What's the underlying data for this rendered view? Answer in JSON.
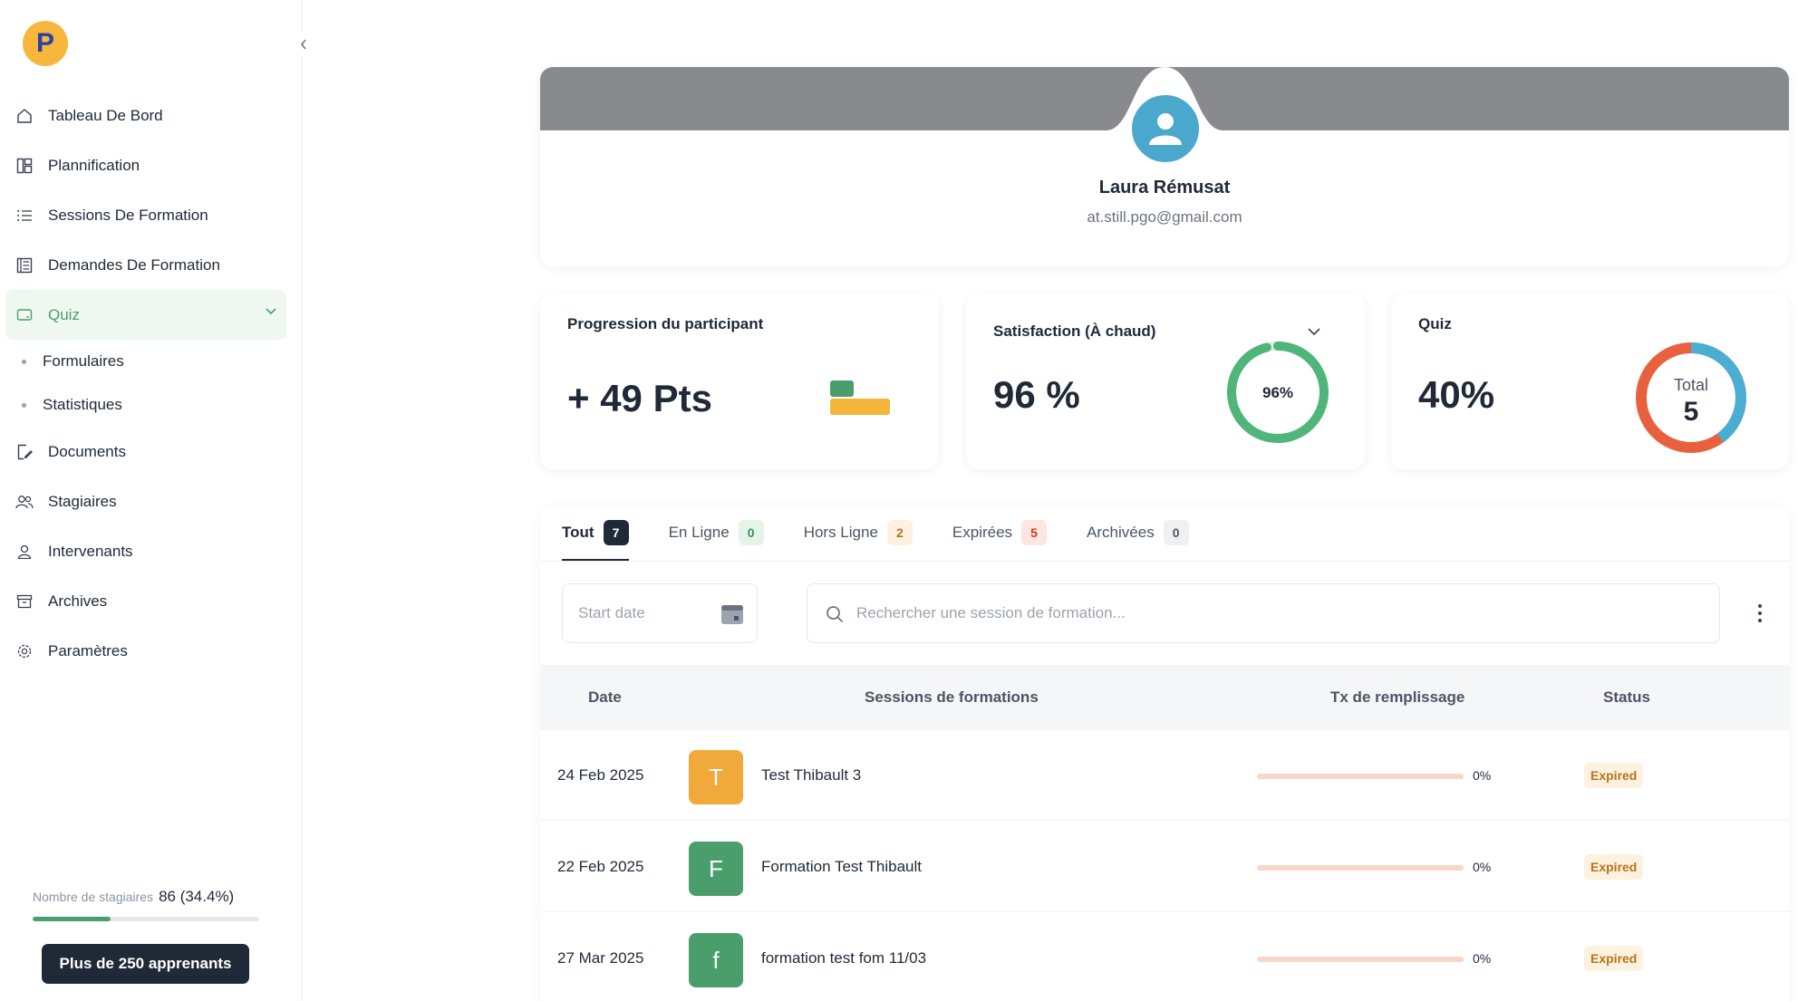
{
  "sidebar": {
    "logo_letter": "P",
    "items": [
      {
        "label": "Tableau De Bord",
        "icon": "home-icon"
      },
      {
        "label": "Plannification",
        "icon": "layout-icon"
      },
      {
        "label": "Sessions De Formation",
        "icon": "list-icon"
      },
      {
        "label": "Demandes De Formation",
        "icon": "document-list-icon"
      },
      {
        "label": "Quiz",
        "icon": "quiz-icon"
      },
      {
        "label": "Documents",
        "icon": "file-edit-icon"
      },
      {
        "label": "Stagiaires",
        "icon": "users-icon"
      },
      {
        "label": "Intervenants",
        "icon": "user-icon"
      },
      {
        "label": "Archives",
        "icon": "archive-icon"
      },
      {
        "label": "Paramètres",
        "icon": "gear-icon"
      }
    ],
    "quiz_sub": [
      {
        "label": "Formulaires"
      },
      {
        "label": "Statistiques"
      }
    ],
    "quota": {
      "label": "Nombre de stagiaires",
      "value": "86 (34.4%)",
      "fraction": 0.344
    },
    "upgrade_label": "Plus de 250 apprenants"
  },
  "profile": {
    "name": "Laura Rémusat",
    "email": "at.still.pgo@gmail.com"
  },
  "stats": {
    "progression": {
      "title": "Progression du participant",
      "value": "+ 49 Pts"
    },
    "satisfaction": {
      "title": "Satisfaction (À chaud)",
      "value": "96 %",
      "ring_label": "96%",
      "ring_fraction": 0.96
    },
    "quiz": {
      "title": "Quiz",
      "value": "40%",
      "donut_label": "Total",
      "donut_value": "5",
      "donut_fraction": 0.4
    }
  },
  "tabs": [
    {
      "label": "Tout",
      "count": "7"
    },
    {
      "label": "En Ligne",
      "count": "0"
    },
    {
      "label": "Hors Ligne",
      "count": "2"
    },
    {
      "label": "Expirées",
      "count": "5"
    },
    {
      "label": "Archivées",
      "count": "0"
    }
  ],
  "filters": {
    "date_placeholder": "Start date",
    "search_placeholder": "Rechercher une session de formation..."
  },
  "table": {
    "headers": [
      "Date",
      "Sessions de formations",
      "Tx de remplissage",
      "Status"
    ],
    "rows": [
      {
        "date": "24 Feb 2025",
        "initial": "T",
        "name": "Test Thibault 3",
        "fill": "0%",
        "status": "Expired"
      },
      {
        "date": "22 Feb 2025",
        "initial": "F",
        "name": "Formation Test Thibault",
        "fill": "0%",
        "status": "Expired"
      },
      {
        "date": "27 Mar 2025",
        "initial": "f",
        "name": "formation test fom 11/03",
        "fill": "0%",
        "status": "Expired"
      }
    ]
  },
  "colors": {
    "accent_green": "#4a9e6c",
    "logo_yellow": "#f6b73c",
    "avatar_blue": "#4aa8cc",
    "expired_text": "#b7741b",
    "row_orange": "#f0a93a",
    "row_green": "#4a9e6c"
  }
}
